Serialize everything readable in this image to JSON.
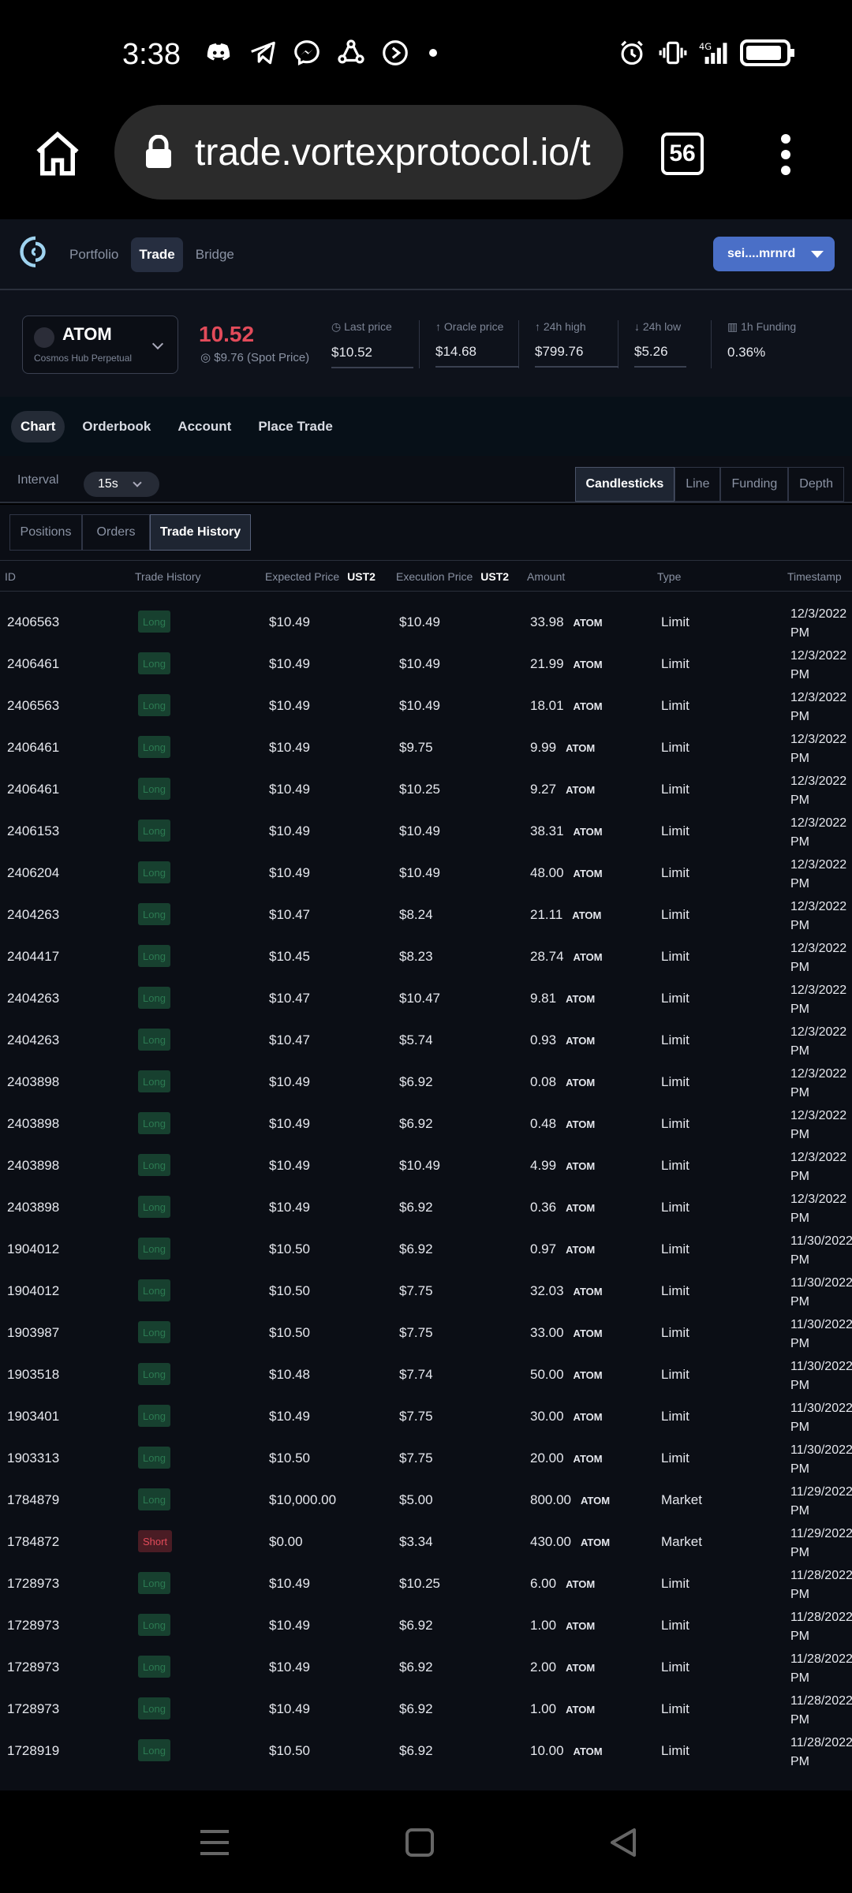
{
  "status_bar": {
    "time": "3:38",
    "network": "4G"
  },
  "browser": {
    "url": "trade.vortexprotocol.io/t",
    "tab_count": "56"
  },
  "nav": {
    "links": [
      "Portfolio",
      "Trade",
      "Bridge"
    ],
    "active": "Trade",
    "wallet": "sei....mrnrd"
  },
  "market": {
    "symbol": "ATOM",
    "subtitle": "Cosmos Hub Perpetual",
    "price": "10.52",
    "spot": "$9.76 (Spot Price)",
    "stats": [
      {
        "label": "Last price",
        "value": "$10.52"
      },
      {
        "label": "Oracle price",
        "value": "$14.68"
      },
      {
        "label": "24h high",
        "value": "$799.76"
      },
      {
        "label": "24h low",
        "value": "$5.26"
      },
      {
        "label": "1h Funding",
        "value": "0.36%"
      }
    ]
  },
  "subtabs": [
    "Chart",
    "Orderbook",
    "Account",
    "Place Trade"
  ],
  "controls": {
    "interval_label": "Interval",
    "interval": "15s",
    "chart_types": [
      "Candlesticks",
      "Line",
      "Funding",
      "Depth"
    ]
  },
  "table_tabs": [
    "Positions",
    "Orders",
    "Trade History"
  ],
  "table": {
    "headers": {
      "id": "ID",
      "trade_history": "Trade History",
      "expected": "Expected Price",
      "expected_unit": "UST2",
      "execution": "Execution Price",
      "execution_unit": "UST2",
      "amount": "Amount",
      "type": "Type",
      "timestamp": "Timestamp"
    },
    "rows": [
      {
        "id": "2406563",
        "side": "Long",
        "expected": "$10.49",
        "execution": "$10.49",
        "amount": "33.98",
        "asset": "ATOM",
        "type": "Limit",
        "date": "12/3/2022",
        "ampm": "PM"
      },
      {
        "id": "2406461",
        "side": "Long",
        "expected": "$10.49",
        "execution": "$10.49",
        "amount": "21.99",
        "asset": "ATOM",
        "type": "Limit",
        "date": "12/3/2022",
        "ampm": "PM"
      },
      {
        "id": "2406563",
        "side": "Long",
        "expected": "$10.49",
        "execution": "$10.49",
        "amount": "18.01",
        "asset": "ATOM",
        "type": "Limit",
        "date": "12/3/2022",
        "ampm": "PM"
      },
      {
        "id": "2406461",
        "side": "Long",
        "expected": "$10.49",
        "execution": "$9.75",
        "amount": "9.99",
        "asset": "ATOM",
        "type": "Limit",
        "date": "12/3/2022",
        "ampm": "PM"
      },
      {
        "id": "2406461",
        "side": "Long",
        "expected": "$10.49",
        "execution": "$10.25",
        "amount": "9.27",
        "asset": "ATOM",
        "type": "Limit",
        "date": "12/3/2022",
        "ampm": "PM"
      },
      {
        "id": "2406153",
        "side": "Long",
        "expected": "$10.49",
        "execution": "$10.49",
        "amount": "38.31",
        "asset": "ATOM",
        "type": "Limit",
        "date": "12/3/2022",
        "ampm": "PM"
      },
      {
        "id": "2406204",
        "side": "Long",
        "expected": "$10.49",
        "execution": "$10.49",
        "amount": "48.00",
        "asset": "ATOM",
        "type": "Limit",
        "date": "12/3/2022",
        "ampm": "PM"
      },
      {
        "id": "2404263",
        "side": "Long",
        "expected": "$10.47",
        "execution": "$8.24",
        "amount": "21.11",
        "asset": "ATOM",
        "type": "Limit",
        "date": "12/3/2022",
        "ampm": "PM"
      },
      {
        "id": "2404417",
        "side": "Long",
        "expected": "$10.45",
        "execution": "$8.23",
        "amount": "28.74",
        "asset": "ATOM",
        "type": "Limit",
        "date": "12/3/2022",
        "ampm": "PM"
      },
      {
        "id": "2404263",
        "side": "Long",
        "expected": "$10.47",
        "execution": "$10.47",
        "amount": "9.81",
        "asset": "ATOM",
        "type": "Limit",
        "date": "12/3/2022",
        "ampm": "PM"
      },
      {
        "id": "2404263",
        "side": "Long",
        "expected": "$10.47",
        "execution": "$5.74",
        "amount": "0.93",
        "asset": "ATOM",
        "type": "Limit",
        "date": "12/3/2022",
        "ampm": "PM"
      },
      {
        "id": "2403898",
        "side": "Long",
        "expected": "$10.49",
        "execution": "$6.92",
        "amount": "0.08",
        "asset": "ATOM",
        "type": "Limit",
        "date": "12/3/2022",
        "ampm": "PM"
      },
      {
        "id": "2403898",
        "side": "Long",
        "expected": "$10.49",
        "execution": "$6.92",
        "amount": "0.48",
        "asset": "ATOM",
        "type": "Limit",
        "date": "12/3/2022",
        "ampm": "PM"
      },
      {
        "id": "2403898",
        "side": "Long",
        "expected": "$10.49",
        "execution": "$10.49",
        "amount": "4.99",
        "asset": "ATOM",
        "type": "Limit",
        "date": "12/3/2022",
        "ampm": "PM"
      },
      {
        "id": "2403898",
        "side": "Long",
        "expected": "$10.49",
        "execution": "$6.92",
        "amount": "0.36",
        "asset": "ATOM",
        "type": "Limit",
        "date": "12/3/2022",
        "ampm": "PM"
      },
      {
        "id": "1904012",
        "side": "Long",
        "expected": "$10.50",
        "execution": "$6.92",
        "amount": "0.97",
        "asset": "ATOM",
        "type": "Limit",
        "date": "11/30/2022",
        "ampm": "PM"
      },
      {
        "id": "1904012",
        "side": "Long",
        "expected": "$10.50",
        "execution": "$7.75",
        "amount": "32.03",
        "asset": "ATOM",
        "type": "Limit",
        "date": "11/30/2022",
        "ampm": "PM"
      },
      {
        "id": "1903987",
        "side": "Long",
        "expected": "$10.50",
        "execution": "$7.75",
        "amount": "33.00",
        "asset": "ATOM",
        "type": "Limit",
        "date": "11/30/2022",
        "ampm": "PM"
      },
      {
        "id": "1903518",
        "side": "Long",
        "expected": "$10.48",
        "execution": "$7.74",
        "amount": "50.00",
        "asset": "ATOM",
        "type": "Limit",
        "date": "11/30/2022",
        "ampm": "PM"
      },
      {
        "id": "1903401",
        "side": "Long",
        "expected": "$10.49",
        "execution": "$7.75",
        "amount": "30.00",
        "asset": "ATOM",
        "type": "Limit",
        "date": "11/30/2022",
        "ampm": "PM"
      },
      {
        "id": "1903313",
        "side": "Long",
        "expected": "$10.50",
        "execution": "$7.75",
        "amount": "20.00",
        "asset": "ATOM",
        "type": "Limit",
        "date": "11/30/2022",
        "ampm": "PM"
      },
      {
        "id": "1784879",
        "side": "Long",
        "expected": "$10,000.00",
        "execution": "$5.00",
        "amount": "800.00",
        "asset": "ATOM",
        "type": "Market",
        "date": "11/29/2022",
        "ampm": "PM"
      },
      {
        "id": "1784872",
        "side": "Short",
        "expected": "$0.00",
        "execution": "$3.34",
        "amount": "430.00",
        "asset": "ATOM",
        "type": "Market",
        "date": "11/29/2022",
        "ampm": "PM"
      },
      {
        "id": "1728973",
        "side": "Long",
        "expected": "$10.49",
        "execution": "$10.25",
        "amount": "6.00",
        "asset": "ATOM",
        "type": "Limit",
        "date": "11/28/2022",
        "ampm": "PM"
      },
      {
        "id": "1728973",
        "side": "Long",
        "expected": "$10.49",
        "execution": "$6.92",
        "amount": "1.00",
        "asset": "ATOM",
        "type": "Limit",
        "date": "11/28/2022",
        "ampm": "PM"
      },
      {
        "id": "1728973",
        "side": "Long",
        "expected": "$10.49",
        "execution": "$6.92",
        "amount": "2.00",
        "asset": "ATOM",
        "type": "Limit",
        "date": "11/28/2022",
        "ampm": "PM"
      },
      {
        "id": "1728973",
        "side": "Long",
        "expected": "$10.49",
        "execution": "$6.92",
        "amount": "1.00",
        "asset": "ATOM",
        "type": "Limit",
        "date": "11/28/2022",
        "ampm": "PM"
      },
      {
        "id": "1728919",
        "side": "Long",
        "expected": "$10.50",
        "execution": "$6.92",
        "amount": "10.00",
        "asset": "ATOM",
        "type": "Limit",
        "date": "11/28/2022",
        "ampm": "PM"
      }
    ]
  },
  "colors": {
    "accent": "#4a6fc7",
    "price_down": "#e24b5a",
    "long_badge_bg": "#17402f",
    "short_badge_bg": "#4a1c24",
    "panel_bg": "#0b0e15"
  }
}
